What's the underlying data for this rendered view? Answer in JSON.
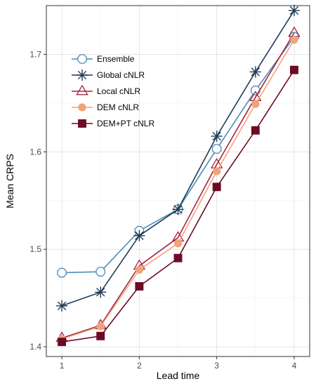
{
  "chart_data": {
    "type": "line",
    "xlabel": "Lead time",
    "ylabel": "Mean CRPS",
    "xlim": [
      0.8,
      4.2
    ],
    "ylim": [
      1.39,
      1.75
    ],
    "x_ticks": [
      1,
      2,
      3,
      4
    ],
    "y_ticks": [
      1.4,
      1.5,
      1.6,
      1.7
    ],
    "x_tick_labels": [
      "1",
      "2",
      "3",
      "4"
    ],
    "y_tick_labels": [
      "1.4",
      "1.5",
      "1.6",
      "1.7"
    ],
    "grid": true,
    "legend_position": "top-left",
    "x": [
      1,
      1.5,
      2,
      2.5,
      3,
      3.5,
      4
    ],
    "series": [
      {
        "name": "Ensemble",
        "color": "#4a8db8",
        "marker": "hexagon-open",
        "values": [
          1.476,
          1.477,
          1.519,
          1.541,
          1.603,
          1.663,
          1.718
        ]
      },
      {
        "name": "Global cNLR",
        "color": "#1f3b57",
        "marker": "asterisk",
        "values": [
          1.442,
          1.456,
          1.514,
          1.541,
          1.616,
          1.682,
          1.745
        ]
      },
      {
        "name": "Local cNLR",
        "color": "#a3263f",
        "marker": "triangle-open",
        "values": [
          1.409,
          1.422,
          1.483,
          1.512,
          1.587,
          1.656,
          1.722
        ]
      },
      {
        "name": "DEM cNLR",
        "color": "#f1a27c",
        "marker": "circle-filled",
        "values": [
          1.408,
          1.421,
          1.479,
          1.506,
          1.58,
          1.649,
          1.715
        ]
      },
      {
        "name": "DEM+PT cNLR",
        "color": "#6e0a24",
        "marker": "square-filled",
        "values": [
          1.405,
          1.411,
          1.462,
          1.491,
          1.564,
          1.622,
          1.684
        ]
      }
    ]
  }
}
